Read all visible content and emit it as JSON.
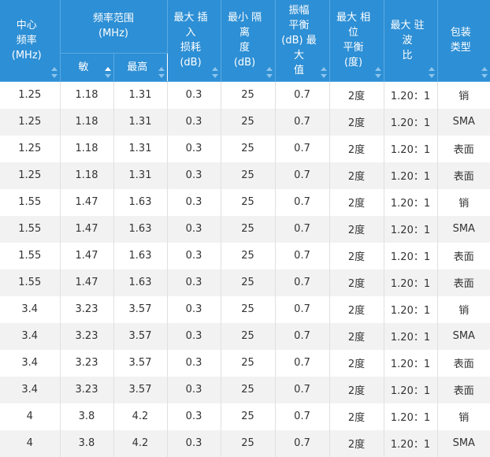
{
  "headers": {
    "center_freq": [
      "中心",
      "频率",
      "(MHz)"
    ],
    "freq_range": [
      "频率范围",
      "(MHz)"
    ],
    "freq_min": "敏",
    "freq_max": "最高",
    "insertion_loss": [
      "最大 插入",
      "损耗",
      "(dB)"
    ],
    "isolation": [
      "最小 隔离",
      "度",
      "(dB)"
    ],
    "amp_balance": [
      "振幅",
      "平衡",
      "(dB) 最大",
      "值"
    ],
    "phase_balance": [
      "最大 相位",
      "平衡",
      "(度)"
    ],
    "vswr": [
      "最大 驻波",
      "比"
    ],
    "package": [
      "包装",
      "类型"
    ]
  },
  "sort": {
    "active_column": "freq_min",
    "direction": "asc"
  },
  "rows": [
    [
      "1.25",
      "1.18",
      "1.31",
      "0.3",
      "25",
      "0.7",
      "2度",
      "1.20：1",
      "销"
    ],
    [
      "1.25",
      "1.18",
      "1.31",
      "0.3",
      "25",
      "0.7",
      "2度",
      "1.20：1",
      "SMA"
    ],
    [
      "1.25",
      "1.18",
      "1.31",
      "0.3",
      "25",
      "0.7",
      "2度",
      "1.20：1",
      "表面"
    ],
    [
      "1.25",
      "1.18",
      "1.31",
      "0.3",
      "25",
      "0.7",
      "2度",
      "1.20：1",
      "表面"
    ],
    [
      "1.55",
      "1.47",
      "1.63",
      "0.3",
      "25",
      "0.7",
      "2度",
      "1.20：1",
      "销"
    ],
    [
      "1.55",
      "1.47",
      "1.63",
      "0.3",
      "25",
      "0.7",
      "2度",
      "1.20：1",
      "SMA"
    ],
    [
      "1.55",
      "1.47",
      "1.63",
      "0.3",
      "25",
      "0.7",
      "2度",
      "1.20：1",
      "表面"
    ],
    [
      "1.55",
      "1.47",
      "1.63",
      "0.3",
      "25",
      "0.7",
      "2度",
      "1.20：1",
      "表面"
    ],
    [
      "3.4",
      "3.23",
      "3.57",
      "0.3",
      "25",
      "0.7",
      "2度",
      "1.20：1",
      "销"
    ],
    [
      "3.4",
      "3.23",
      "3.57",
      "0.3",
      "25",
      "0.7",
      "2度",
      "1.20：1",
      "SMA"
    ],
    [
      "3.4",
      "3.23",
      "3.57",
      "0.3",
      "25",
      "0.7",
      "2度",
      "1.20：1",
      "表面"
    ],
    [
      "3.4",
      "3.23",
      "3.57",
      "0.3",
      "25",
      "0.7",
      "2度",
      "1.20：1",
      "表面"
    ],
    [
      "4",
      "3.8",
      "4.2",
      "0.3",
      "25",
      "0.7",
      "2度",
      "1.20：1",
      "销"
    ],
    [
      "4",
      "3.8",
      "4.2",
      "0.3",
      "25",
      "0.7",
      "2度",
      "1.20：1",
      "SMA"
    ]
  ],
  "colors": {
    "header_bg": "#2d8fd5",
    "header_text": "#ffffff",
    "row_alt": "#f2f2f2",
    "text": "#333333"
  }
}
